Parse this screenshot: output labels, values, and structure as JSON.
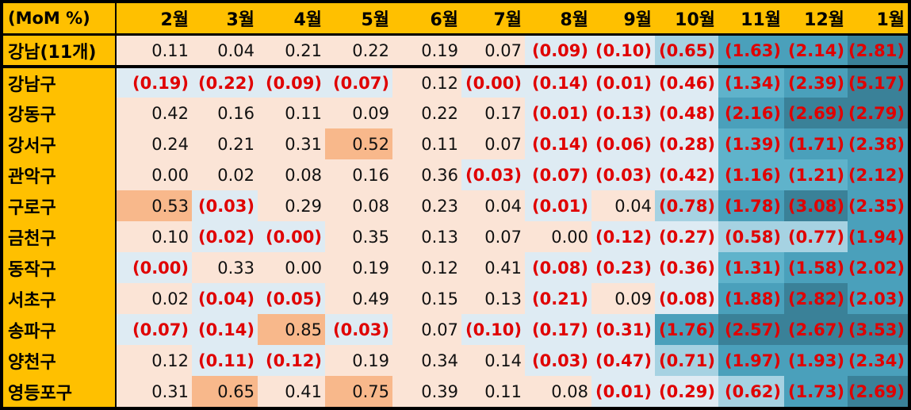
{
  "chart_data": {
    "type": "table",
    "title": "(MoM %)",
    "columns": [
      "2월",
      "3월",
      "4월",
      "5월",
      "6월",
      "7월",
      "8월",
      "9월",
      "10월",
      "11월",
      "12월",
      "1월"
    ],
    "summary_row": {
      "label": "강남(11개)",
      "values": [
        0.11,
        0.04,
        0.21,
        0.22,
        0.19,
        0.07,
        -0.09,
        -0.1,
        -0.65,
        -1.63,
        -2.14,
        -2.81
      ]
    },
    "rows": [
      {
        "label": "강남구",
        "values": [
          -0.19,
          -0.22,
          -0.09,
          -0.07,
          0.12,
          -0.0,
          -0.14,
          -0.01,
          -0.46,
          -1.34,
          -2.39,
          -5.17
        ]
      },
      {
        "label": "강동구",
        "values": [
          0.42,
          0.16,
          0.11,
          0.09,
          0.22,
          0.17,
          -0.01,
          -0.13,
          -0.48,
          -2.16,
          -2.69,
          -2.79
        ]
      },
      {
        "label": "강서구",
        "values": [
          0.24,
          0.21,
          0.31,
          0.52,
          0.11,
          0.07,
          -0.14,
          -0.06,
          -0.28,
          -1.39,
          -1.71,
          -2.38
        ]
      },
      {
        "label": "관악구",
        "values": [
          0.0,
          0.02,
          0.08,
          0.16,
          0.36,
          -0.03,
          -0.07,
          -0.03,
          -0.42,
          -1.16,
          -1.21,
          -2.12
        ]
      },
      {
        "label": "구로구",
        "values": [
          0.53,
          -0.03,
          0.29,
          0.08,
          0.23,
          0.04,
          -0.01,
          0.04,
          -0.78,
          -1.78,
          -3.08,
          -2.35
        ]
      },
      {
        "label": "금천구",
        "values": [
          0.1,
          -0.02,
          -0.0,
          0.35,
          0.13,
          0.07,
          0.0,
          -0.12,
          -0.27,
          -0.58,
          -0.77,
          -1.94
        ]
      },
      {
        "label": "동작구",
        "values": [
          -0.0,
          0.33,
          0.0,
          0.19,
          0.12,
          0.41,
          -0.08,
          -0.23,
          -0.36,
          -1.31,
          -1.58,
          -2.02
        ]
      },
      {
        "label": "서초구",
        "values": [
          0.02,
          -0.04,
          -0.05,
          0.49,
          0.15,
          0.13,
          -0.21,
          0.09,
          -0.08,
          -1.88,
          -2.82,
          -2.03
        ]
      },
      {
        "label": "송파구",
        "values": [
          -0.07,
          -0.14,
          0.85,
          -0.03,
          0.07,
          -0.1,
          -0.17,
          -0.31,
          -1.76,
          -2.57,
          -2.67,
          -3.53
        ]
      },
      {
        "label": "양천구",
        "values": [
          0.12,
          -0.11,
          -0.12,
          0.19,
          0.34,
          0.14,
          -0.03,
          -0.47,
          -0.71,
          -1.97,
          -1.93,
          -2.34
        ]
      },
      {
        "label": "영등포구",
        "values": [
          0.31,
          0.65,
          0.41,
          0.75,
          0.39,
          0.11,
          0.08,
          -0.01,
          -0.29,
          -0.62,
          -1.73,
          -2.69
        ]
      }
    ],
    "negative_format": "parentheses",
    "negative_text_color": "#e00000",
    "header_color": "#ffc000",
    "scale_colors": {
      "strong_positive": "#f8b88b",
      "mild_positive": "#fbe4d6",
      "near_zero_negative": "#deebf3",
      "mild_negative": "#a6d2e2",
      "medium_negative": "#5fb3cb",
      "strong_negative": "#4aa0bb",
      "very_strong_negative": "#3a8198"
    }
  }
}
